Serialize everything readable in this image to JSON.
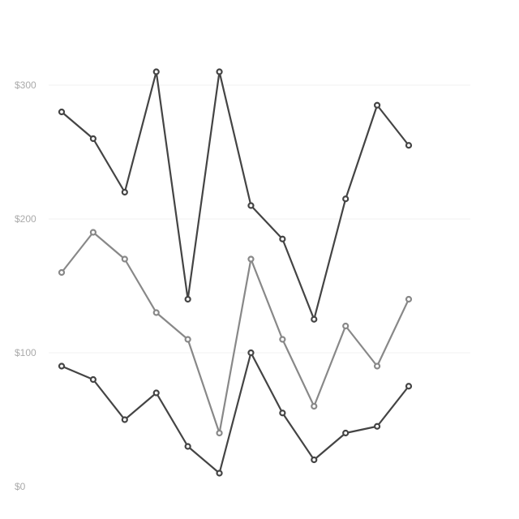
{
  "chart_data": {
    "type": "line",
    "title": "",
    "xlabel": "",
    "ylabel": "",
    "ylim": [
      0,
      300
    ],
    "yticks": [
      {
        "value": 0,
        "label": "$0"
      },
      {
        "value": 100,
        "label": "$100"
      },
      {
        "value": 200,
        "label": "$200"
      },
      {
        "value": 300,
        "label": "$300"
      }
    ],
    "x": [
      1,
      2,
      3,
      4,
      5,
      6,
      7,
      8,
      9,
      10,
      11,
      12
    ],
    "grid": true,
    "legend": "none",
    "series": [
      {
        "color": "#444444",
        "values": [
          280,
          260,
          220,
          310,
          140,
          310,
          210,
          185,
          125,
          215,
          285,
          255
        ]
      },
      {
        "color": "#888888",
        "values": [
          160,
          190,
          170,
          130,
          110,
          40,
          170,
          110,
          60,
          120,
          90,
          140
        ]
      },
      {
        "color": "#444444",
        "values": [
          90,
          80,
          50,
          70,
          30,
          10,
          100,
          55,
          20,
          40,
          45,
          75
        ]
      }
    ]
  }
}
